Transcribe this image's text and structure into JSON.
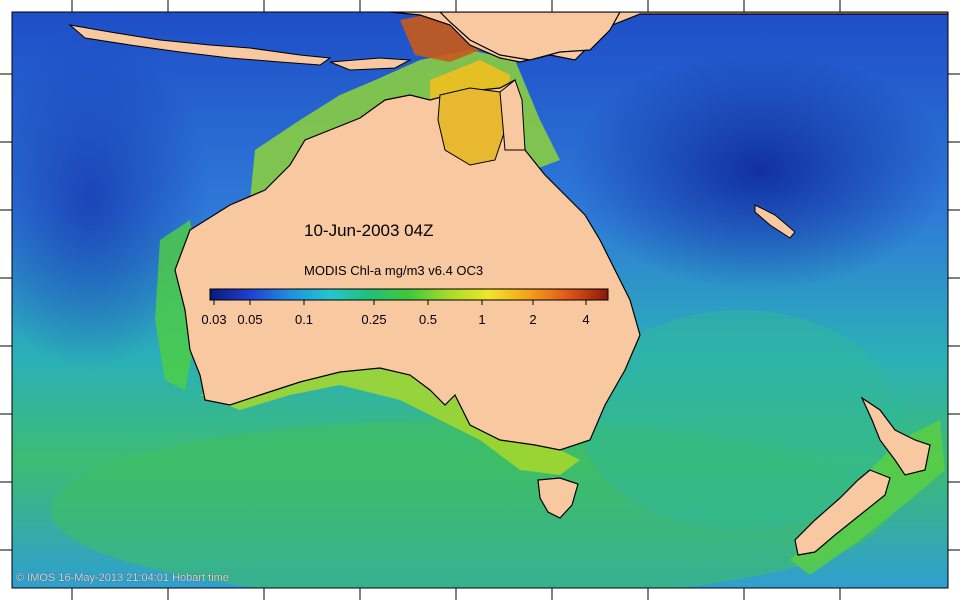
{
  "map": {
    "date_label": "10-Jun-2003 04Z",
    "colorbar": {
      "title": "MODIS Chl-a mg/m3 v6.4 OC3",
      "ticks": [
        "0.03",
        "0.05",
        "0.1",
        "0.25",
        "0.5",
        "1",
        "2",
        "4"
      ],
      "stops": [
        "#0a1a7a",
        "#1f3fd0",
        "#1f8fe0",
        "#22c6d0",
        "#22c078",
        "#3fc83a",
        "#a6dc2a",
        "#f0e62a",
        "#f5a21a",
        "#e0561a",
        "#8a1a0a"
      ]
    },
    "credit": "© IMOS 16-May-2013 21:04:01 Hobart time",
    "colors": {
      "land": "#f8c8a0",
      "ocean_deep": "#1e46c8",
      "ocean_mid": "#2f86d8",
      "ocean_green": "#3fb86a",
      "coastal_bloom": "#f0d020",
      "high_chl": "#c8501a"
    }
  }
}
